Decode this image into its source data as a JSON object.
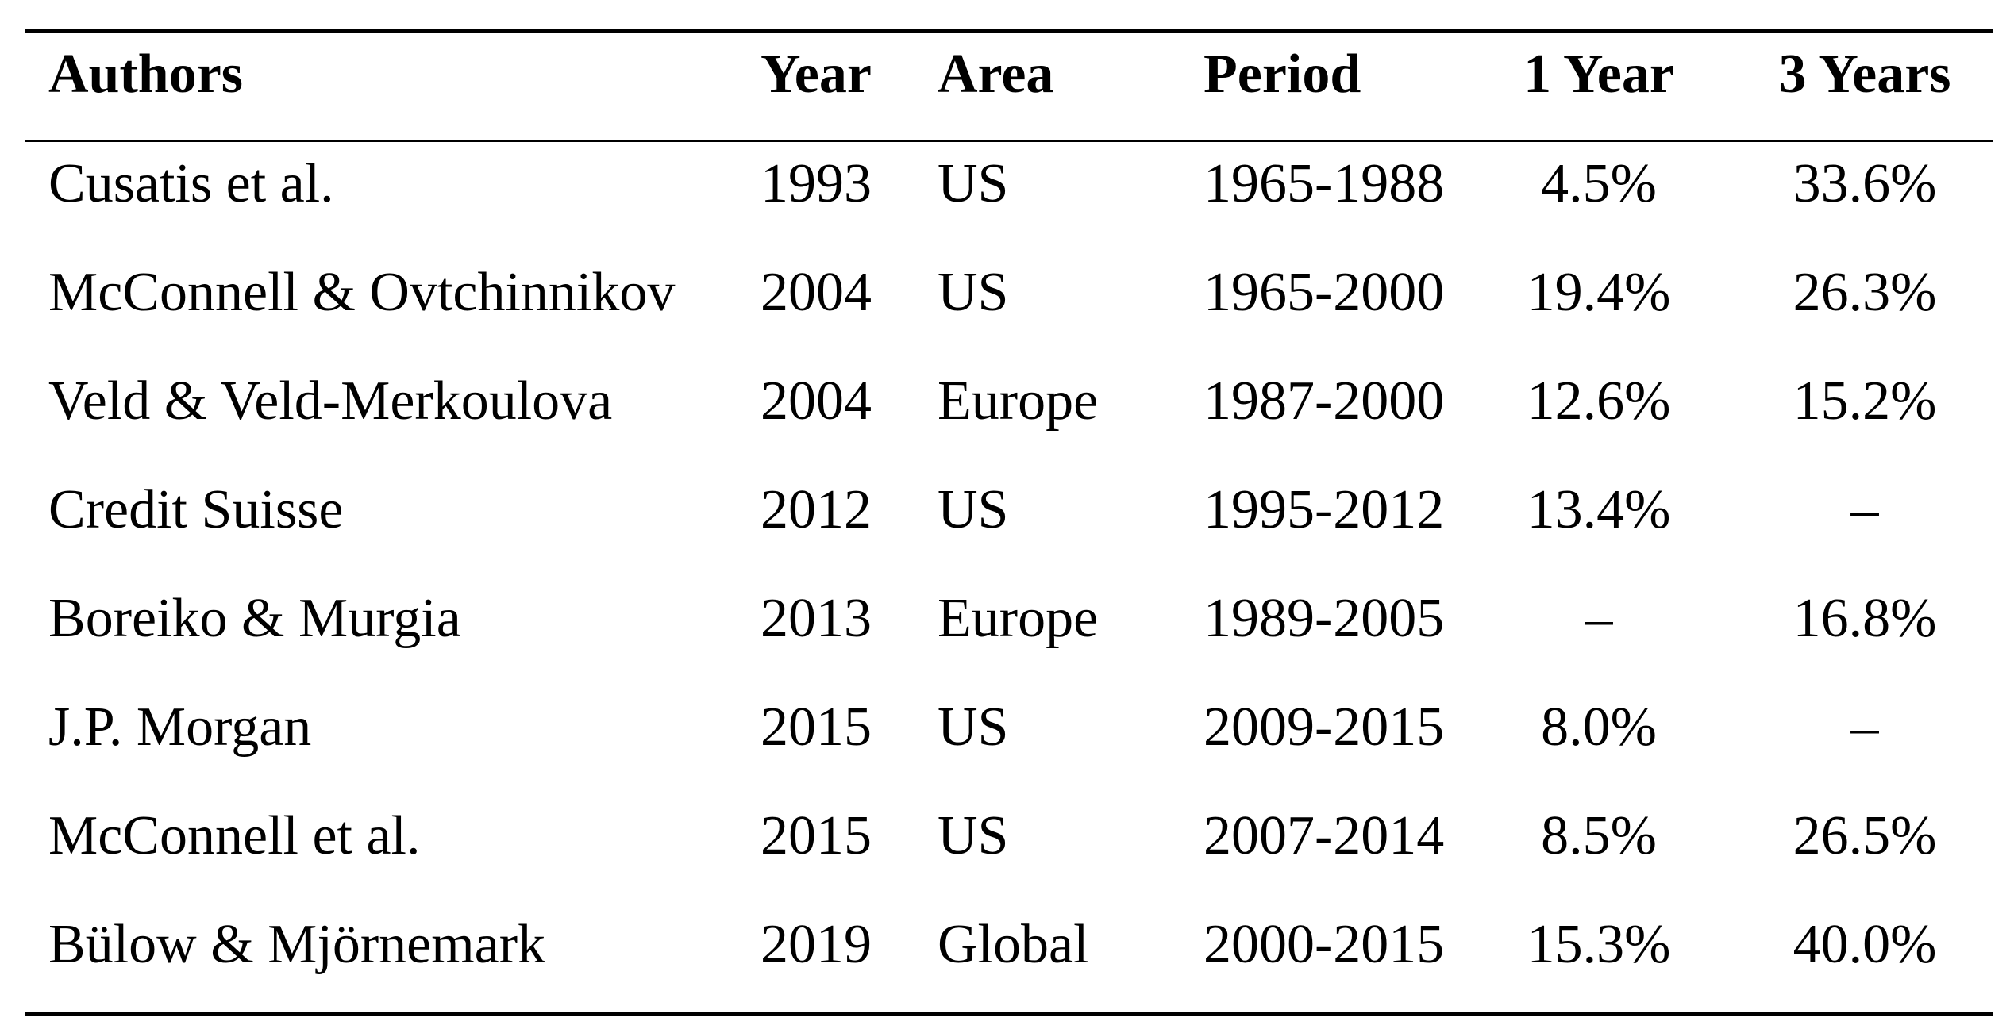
{
  "table": {
    "headers": [
      "Authors",
      "Year",
      "Area",
      "Period",
      "1 Year",
      "3 Years"
    ],
    "rows": [
      [
        "Cusatis et al.",
        "1993",
        "US",
        "1965-1988",
        "4.5%",
        "33.6%"
      ],
      [
        "McConnell & Ovtchinnikov",
        "2004",
        "US",
        "1965-2000",
        "19.4%",
        "26.3%"
      ],
      [
        "Veld & Veld-Merkoulova",
        "2004",
        "Europe",
        "1987-2000",
        "12.6%",
        "15.2%"
      ],
      [
        "Credit Suisse",
        "2012",
        "US",
        "1995-2012",
        "13.4%",
        "–"
      ],
      [
        "Boreiko & Murgia",
        "2013",
        "Europe",
        "1989-2005",
        "–",
        "16.8%"
      ],
      [
        "J.P. Morgan",
        "2015",
        "US",
        "2009-2015",
        "8.0%",
        "–"
      ],
      [
        "McConnell et al.",
        "2015",
        "US",
        "2007-2014",
        "8.5%",
        "26.5%"
      ],
      [
        "Bülow & Mjörnemark",
        "2019",
        "Global",
        "2000-2015",
        "15.3%",
        "40.0%"
      ]
    ]
  }
}
